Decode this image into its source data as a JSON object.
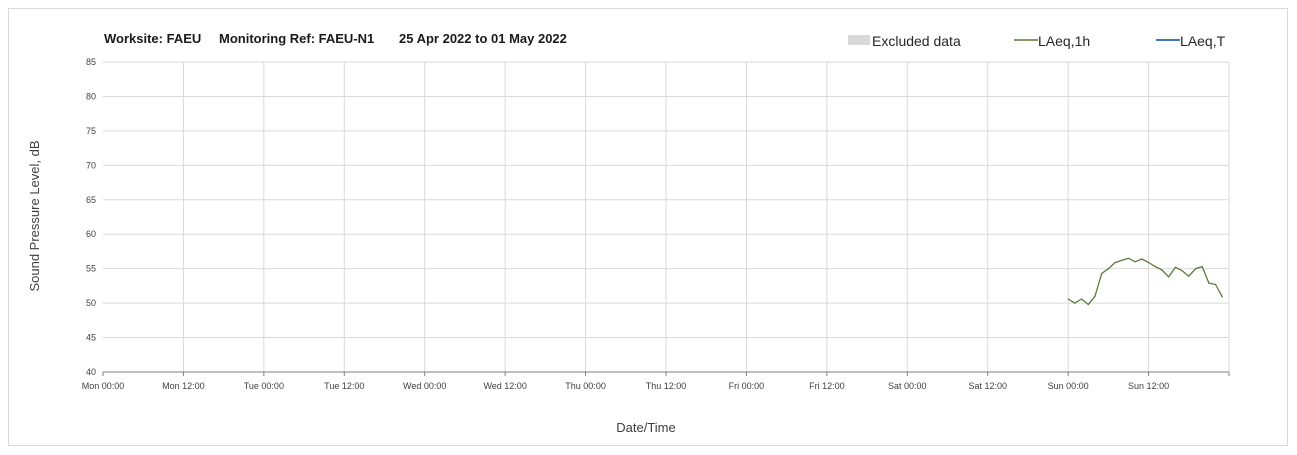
{
  "header": {
    "worksite": "Worksite: FAEU",
    "monitoring_ref": "Monitoring Ref: FAEU-N1",
    "date_range": "25 Apr 2022 to 01 May 2022"
  },
  "legend": [
    {
      "label": "Excluded data",
      "color": "#d9d9d9",
      "kind": "box"
    },
    {
      "label": "LAeq,1h",
      "color": "#5a7a3a",
      "kind": "line"
    },
    {
      "label": "LAeq,T",
      "color": "#4472c4",
      "kind": "line"
    }
  ],
  "chart_data": {
    "type": "line",
    "title": "",
    "xlabel": "Date/Time",
    "ylabel": "Sound Pressure Level, dB",
    "ylim": [
      40,
      85
    ],
    "yticks": [
      40,
      45,
      50,
      55,
      60,
      65,
      70,
      75,
      80,
      85
    ],
    "xlim_hours": [
      0,
      168
    ],
    "xtick_labels": [
      "Mon 00:00",
      "Mon 12:00",
      "Tue 00:00",
      "Tue 12:00",
      "Wed 00:00",
      "Wed 12:00",
      "Thu 00:00",
      "Thu 12:00",
      "Fri 00:00",
      "Fri 12:00",
      "Sat 00:00",
      "Sat 12:00",
      "Sun 00:00",
      "Sun 12:00"
    ],
    "grid": true,
    "legend_position": "top-right",
    "series": [
      {
        "name": "LAeq,1h",
        "color": "#5a7a3a",
        "x": [
          "Sun 00:00",
          "Sun 01:00",
          "Sun 02:00",
          "Sun 03:00",
          "Sun 04:00",
          "Sun 05:00",
          "Sun 06:00",
          "Sun 07:00",
          "Sun 08:00",
          "Sun 09:00",
          "Sun 10:00",
          "Sun 11:00",
          "Sun 12:00",
          "Sun 13:00",
          "Sun 14:00",
          "Sun 15:00",
          "Sun 16:00",
          "Sun 17:00",
          "Sun 18:00",
          "Sun 19:00",
          "Sun 20:00",
          "Sun 21:00",
          "Sun 22:00",
          "Sun 23:00"
        ],
        "values": [
          50.6,
          50.0,
          50.6,
          49.8,
          51.0,
          54.3,
          55.0,
          55.9,
          56.2,
          56.5,
          56.0,
          56.4,
          55.9,
          55.3,
          54.8,
          53.8,
          55.2,
          54.7,
          53.9,
          55.0,
          55.3,
          52.9,
          52.7,
          50.9
        ]
      },
      {
        "name": "LAeq,T",
        "color": "#4472c4",
        "x": [],
        "values": []
      }
    ]
  }
}
